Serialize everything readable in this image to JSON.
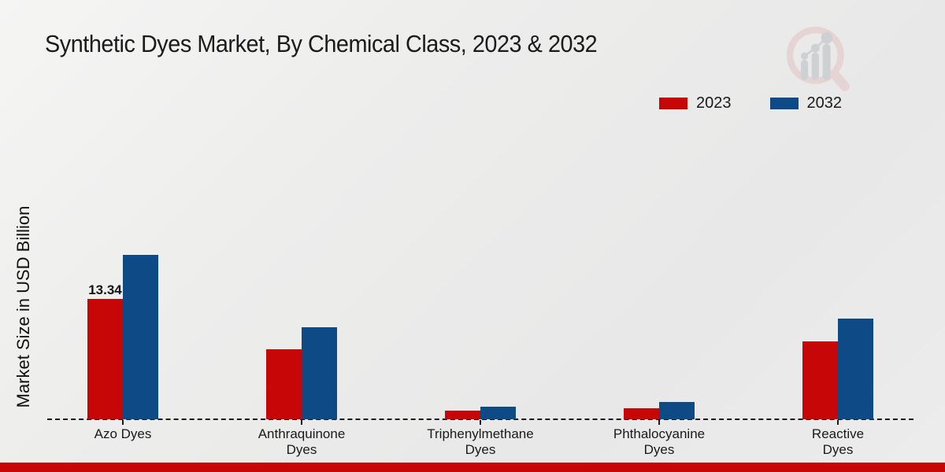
{
  "header": {
    "title": "Synthetic Dyes Market, By Chemical Class, 2023 & 2032"
  },
  "legend": {
    "items": [
      {
        "label": "2023",
        "color": "#c70707"
      },
      {
        "label": "2032",
        "color": "#0d4a86"
      }
    ]
  },
  "watermark": {
    "icon": "magnifier-growth-chart-logo"
  },
  "accent": {
    "footer_color": "#c70707",
    "background": "#ececec",
    "text_color": "#1a1a1a"
  },
  "chart_data": {
    "type": "bar",
    "title": "Synthetic Dyes Market, By Chemical Class, 2023 & 2032",
    "xlabel": "",
    "ylabel": "Market Size in USD Billion",
    "categories": [
      "Azo Dyes",
      "Anthraquinone\nDyes",
      "Triphenylmethane\nDyes",
      "Phthalocyanine\nDyes",
      "Reactive\nDyes"
    ],
    "series": [
      {
        "name": "2023",
        "color": "#c70707",
        "values": [
          13.34,
          7.8,
          1.0,
          1.2,
          8.6
        ]
      },
      {
        "name": "2032",
        "color": "#0d4a86",
        "values": [
          18.2,
          10.2,
          1.4,
          1.9,
          11.2
        ]
      }
    ],
    "bar_labels": [
      {
        "series_index": 0,
        "category_index": 0,
        "series": "2023",
        "category": "Azo Dyes",
        "text": "13.34"
      }
    ],
    "ylim": [
      0,
      20
    ],
    "y_axis_ticks_visible": false,
    "grid": false,
    "baseline_style": "dashed",
    "legend_position": "top-right"
  }
}
